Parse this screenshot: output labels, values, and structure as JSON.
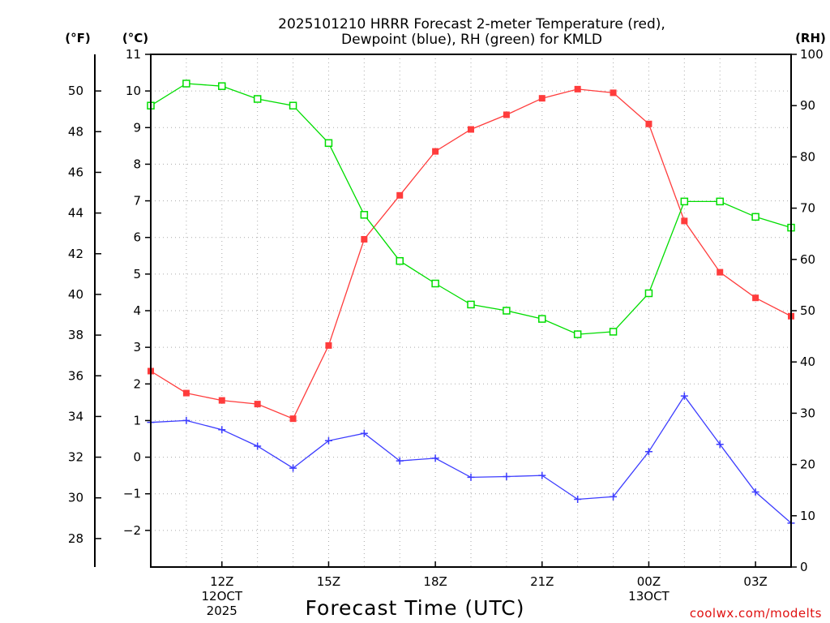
{
  "chart_data": {
    "type": "line",
    "title_lines": [
      "2025101210 HRRR Forecast 2-meter Temperature (red),",
      "Dewpoint (blue), RH (green) for KMLD"
    ],
    "xlabel": "Forecast Time (UTC)",
    "credit": "coolwx.com/modelts",
    "x_hours": [
      10,
      11,
      12,
      13,
      14,
      15,
      16,
      17,
      18,
      19,
      20,
      21,
      22,
      23,
      24,
      25,
      26,
      27,
      28
    ],
    "xlim": [
      10,
      28
    ],
    "xticks": [
      {
        "hour": 12,
        "lines": [
          "12Z",
          "12OCT",
          "2025"
        ]
      },
      {
        "hour": 15,
        "lines": [
          "15Z"
        ]
      },
      {
        "hour": 18,
        "lines": [
          "18Z"
        ]
      },
      {
        "hour": 21,
        "lines": [
          "21Z"
        ]
      },
      {
        "hour": 24,
        "lines": [
          "00Z",
          "13OCT"
        ]
      },
      {
        "hour": 27,
        "lines": [
          "03Z"
        ]
      }
    ],
    "axes": {
      "fahrenheit": {
        "unit_label": "(°F)",
        "ticks": [
          "28",
          "30",
          "32",
          "34",
          "36",
          "38",
          "40",
          "42",
          "44",
          "46",
          "48",
          "50"
        ],
        "range": [
          26.6,
          51.8
        ]
      },
      "celsius": {
        "unit_label": "(°C)",
        "ticks": [
          "−2",
          "−1",
          "0",
          "1",
          "2",
          "3",
          "4",
          "5",
          "6",
          "7",
          "8",
          "9",
          "10",
          "11"
        ],
        "range": [
          -3,
          11
        ]
      },
      "rh": {
        "unit_label": "(RH)",
        "ticks": [
          "0",
          "10",
          "20",
          "30",
          "40",
          "50",
          "60",
          "70",
          "80",
          "90",
          "100"
        ],
        "range": [
          0,
          100
        ]
      }
    },
    "series": [
      {
        "name": "Temperature",
        "unit": "C",
        "color": "#ff3c3c",
        "marker": "filled-square",
        "values": [
          2.35,
          1.75,
          1.55,
          1.45,
          1.05,
          3.05,
          5.95,
          7.15,
          8.35,
          8.95,
          9.35,
          9.8,
          10.05,
          9.95,
          9.1,
          6.45,
          5.05,
          4.35,
          3.85
        ]
      },
      {
        "name": "Dewpoint",
        "unit": "C",
        "color": "#3c3cff",
        "marker": "plus",
        "values": [
          0.95,
          1.0,
          0.75,
          0.3,
          -0.3,
          0.45,
          0.65,
          -0.1,
          -0.03,
          -0.55,
          -0.53,
          -0.5,
          -1.15,
          -1.08,
          0.15,
          1.67,
          0.35,
          -0.95,
          -1.8
        ]
      },
      {
        "name": "RH",
        "unit": "%",
        "color": "#00dd00",
        "marker": "open-square",
        "values": [
          90,
          94.3,
          93.8,
          91.3,
          90,
          82.7,
          68.7,
          59.7,
          55.3,
          51.2,
          50,
          48.4,
          45.4,
          45.9,
          53.4,
          71.3,
          71.3,
          68.3,
          66.2
        ]
      }
    ],
    "grid": true
  }
}
